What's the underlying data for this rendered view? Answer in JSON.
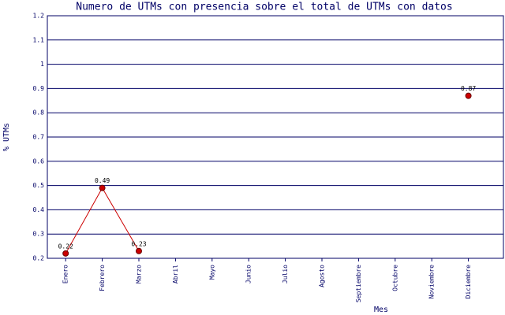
{
  "chart_data": {
    "type": "line",
    "title": "Numero de UTMs con presencia sobre el total de UTMs con datos",
    "x_label": "Mes",
    "y_label": "% UTMs",
    "categories": [
      "Enero",
      "Febrero",
      "Marzo",
      "Abril",
      "Mayo",
      "Junio",
      "Julio",
      "Agosto",
      "Septiembre",
      "Octubre",
      "Noviembre",
      "Diciembre"
    ],
    "values": [
      0.22,
      0.49,
      0.23,
      null,
      null,
      null,
      null,
      null,
      null,
      null,
      null,
      0.87
    ],
    "color": "#cc0000",
    "ylim": [
      0.2,
      1.2
    ],
    "yticks": [
      0.2,
      0.3,
      0.4,
      0.5,
      0.6,
      0.7,
      0.8,
      0.9,
      1,
      1.1,
      1.2
    ],
    "grid": true
  }
}
